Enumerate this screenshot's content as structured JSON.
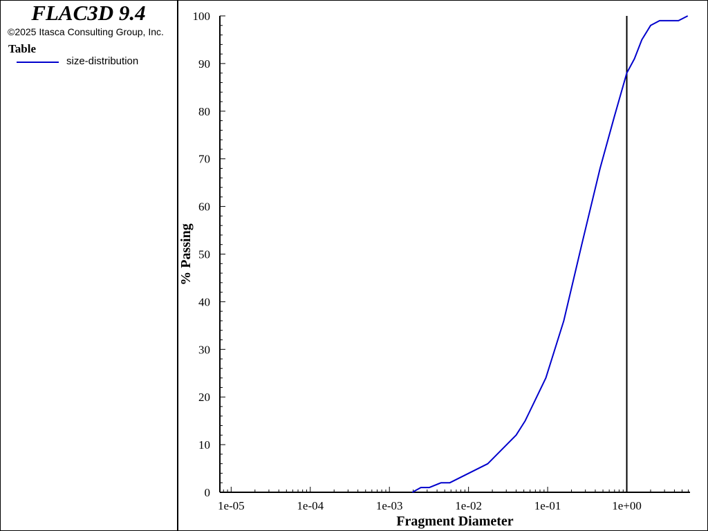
{
  "app": {
    "title": "FLAC3D 9.4",
    "copyright": "©2025 Itasca Consulting Group, Inc."
  },
  "legend": {
    "heading": "Table",
    "items": [
      {
        "label": "size-distribution",
        "color": "#0000cc"
      }
    ]
  },
  "chart_data": {
    "type": "line",
    "xlabel": "Fragment Diameter",
    "ylabel": "% Passing",
    "x_scale": "log",
    "xlim": [
      7.2e-06,
      6.3
    ],
    "ylim": [
      0,
      100
    ],
    "x_tick_labels": [
      "1e-05",
      "1e-04",
      "1e-03",
      "1e-02",
      "1e-01",
      "1e+00"
    ],
    "x_tick_values": [
      1e-05,
      0.0001,
      0.001,
      0.01,
      0.1,
      1
    ],
    "y_tick_labels": [
      "0",
      "10",
      "20",
      "30",
      "40",
      "50",
      "60",
      "70",
      "80",
      "90",
      "100"
    ],
    "y_tick_values": [
      0,
      10,
      20,
      30,
      40,
      50,
      60,
      70,
      80,
      90,
      100
    ],
    "grid": false,
    "legend_position": "left-panel",
    "vertical_marker_x": 1,
    "series": [
      {
        "name": "size-distribution",
        "color": "#0000cc",
        "x": [
          0.00195,
          0.0025,
          0.0032,
          0.0045,
          0.0058,
          0.0175,
          0.04,
          0.052,
          0.068,
          0.095,
          0.16,
          0.27,
          0.46,
          0.7,
          1.0,
          1.25,
          1.55,
          2.0,
          2.6,
          3.2,
          4.5,
          5.9
        ],
        "y": [
          0,
          1,
          1,
          2,
          2,
          6,
          12,
          15,
          19,
          24,
          36,
          52,
          68,
          79,
          88,
          91,
          95,
          98,
          99,
          99,
          99,
          100
        ]
      }
    ]
  }
}
